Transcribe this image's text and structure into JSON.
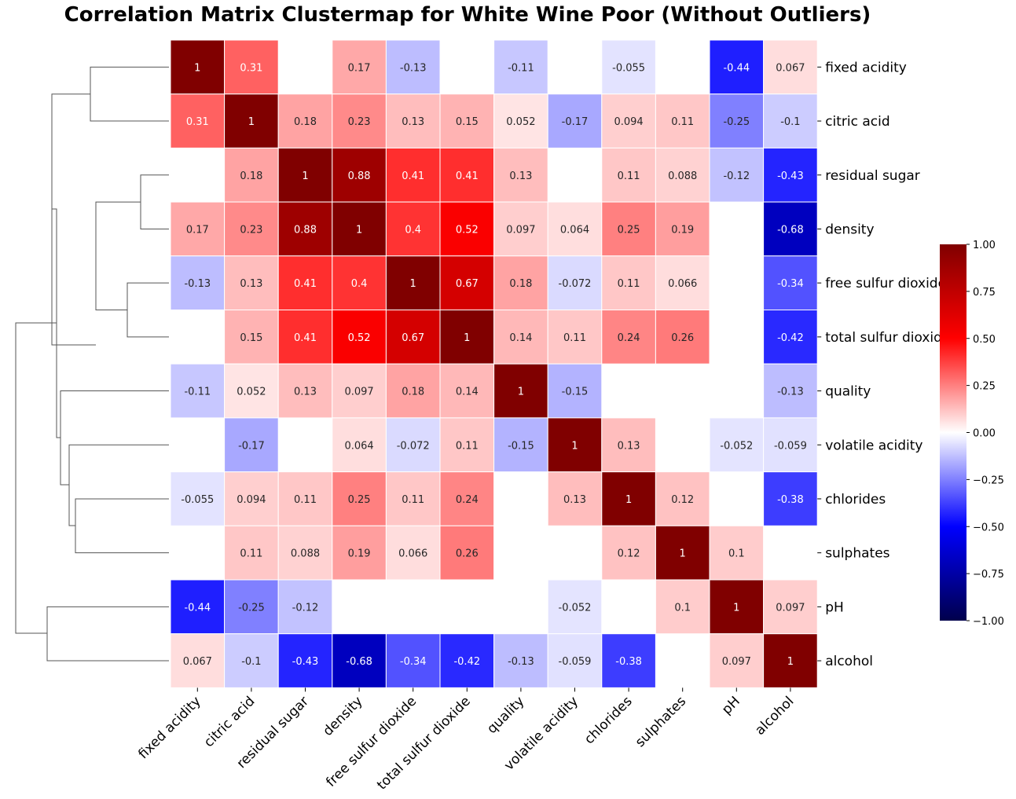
{
  "chart_data": {
    "type": "heatmap",
    "title": "Correlation Matrix Clustermap for White Wine Poor (Without Outliers)",
    "xlabel": "",
    "ylabel": "",
    "variables": [
      "fixed acidity",
      "citric acid",
      "residual sugar",
      "density",
      "free sulfur dioxide",
      "total sulfur dioxide",
      "quality",
      "volatile acidity",
      "chlorides",
      "sulphates",
      "pH",
      "alcohol"
    ],
    "matrix": [
      [
        1,
        0.31,
        null,
        0.17,
        -0.13,
        null,
        -0.11,
        null,
        -0.055,
        null,
        -0.44,
        0.067
      ],
      [
        0.31,
        1,
        0.18,
        0.23,
        0.13,
        0.15,
        0.052,
        -0.17,
        0.094,
        0.11,
        -0.25,
        -0.1
      ],
      [
        null,
        0.18,
        1,
        0.88,
        0.41,
        0.41,
        0.13,
        null,
        0.11,
        0.088,
        -0.12,
        -0.43
      ],
      [
        0.17,
        0.23,
        0.88,
        1,
        0.4,
        0.52,
        0.097,
        0.064,
        0.25,
        0.19,
        null,
        -0.68
      ],
      [
        -0.13,
        0.13,
        0.41,
        0.4,
        1,
        0.67,
        0.18,
        -0.072,
        0.11,
        0.066,
        null,
        -0.34
      ],
      [
        null,
        0.15,
        0.41,
        0.52,
        0.67,
        1,
        0.14,
        0.11,
        0.24,
        0.26,
        null,
        -0.42
      ],
      [
        -0.11,
        0.052,
        0.13,
        0.097,
        0.18,
        0.14,
        1,
        -0.15,
        null,
        null,
        null,
        -0.13
      ],
      [
        null,
        -0.17,
        null,
        0.064,
        -0.072,
        0.11,
        -0.15,
        1,
        0.13,
        null,
        -0.052,
        -0.059
      ],
      [
        -0.055,
        0.094,
        0.11,
        0.25,
        0.11,
        0.24,
        null,
        0.13,
        1,
        0.12,
        null,
        -0.38
      ],
      [
        null,
        0.11,
        0.088,
        0.19,
        0.066,
        0.26,
        null,
        null,
        0.12,
        1,
        0.1,
        null
      ],
      [
        -0.44,
        -0.25,
        -0.12,
        null,
        null,
        null,
        null,
        -0.052,
        null,
        0.1,
        1,
        0.097
      ],
      [
        0.067,
        -0.1,
        -0.43,
        -0.68,
        -0.34,
        -0.42,
        -0.13,
        -0.059,
        -0.38,
        null,
        0.097,
        1
      ]
    ],
    "annotations": [
      [
        "1",
        "0.31",
        "",
        "0.17",
        "-0.13",
        "",
        "-0.11",
        "",
        "-0.055",
        "",
        "-0.44",
        "0.067"
      ],
      [
        "0.31",
        "1",
        "0.18",
        "0.23",
        "0.13",
        "0.15",
        "0.052",
        "-0.17",
        "0.094",
        "0.11",
        "-0.25",
        "-0.1"
      ],
      [
        "",
        "0.18",
        "1",
        "0.88",
        "0.41",
        "0.41",
        "0.13",
        "",
        "0.11",
        "0.088",
        "-0.12",
        "-0.43"
      ],
      [
        "0.17",
        "0.23",
        "0.88",
        "1",
        "0.4",
        "0.52",
        "0.097",
        "0.064",
        "0.25",
        "0.19",
        "",
        "-0.68"
      ],
      [
        "-0.13",
        "0.13",
        "0.41",
        "0.4",
        "1",
        "0.67",
        "0.18",
        "-0.072",
        "0.11",
        "0.066",
        "",
        "-0.34"
      ],
      [
        "",
        "0.15",
        "0.41",
        "0.52",
        "0.67",
        "1",
        "0.14",
        "0.11",
        "0.24",
        "0.26",
        "",
        "-0.42"
      ],
      [
        "-0.11",
        "0.052",
        "0.13",
        "0.097",
        "0.18",
        "0.14",
        "1",
        "-0.15",
        "",
        "",
        "",
        "-0.13"
      ],
      [
        "",
        "-0.17",
        "",
        "0.064",
        "-0.072",
        "0.11",
        "-0.15",
        "1",
        "0.13",
        "",
        "-0.052",
        "-0.059"
      ],
      [
        "-0.055",
        "0.094",
        "0.11",
        "0.25",
        "0.11",
        "0.24",
        "",
        "0.13",
        "1",
        "0.12",
        "",
        "-0.38"
      ],
      [
        "",
        "0.11",
        "0.088",
        "0.19",
        "0.066",
        "0.26",
        "",
        "",
        "0.12",
        "1",
        "0.1",
        ""
      ],
      [
        "-0.44",
        "-0.25",
        "-0.12",
        "",
        "",
        "",
        "",
        "-0.052",
        "",
        "0.1",
        "1",
        "0.097"
      ],
      [
        "0.067",
        "-0.1",
        "-0.43",
        "-0.68",
        "-0.34",
        "-0.42",
        "-0.13",
        "-0.059",
        "-0.38",
        "",
        "0.097",
        "1"
      ]
    ],
    "colormap": "seismic",
    "vmin": -1,
    "vmax": 1,
    "colorbar_ticks": [
      "1.00",
      "0.75",
      "0.50",
      "0.25",
      "0.00",
      "−0.25",
      "−0.50",
      "−0.75",
      "−1.00"
    ],
    "colorbar_tick_values": [
      1,
      0.75,
      0.5,
      0.25,
      0,
      -0.25,
      -0.5,
      -0.75,
      -1
    ],
    "dendrogram": "row, left side",
    "blank_cells": "masked where |r| < 0.05"
  }
}
